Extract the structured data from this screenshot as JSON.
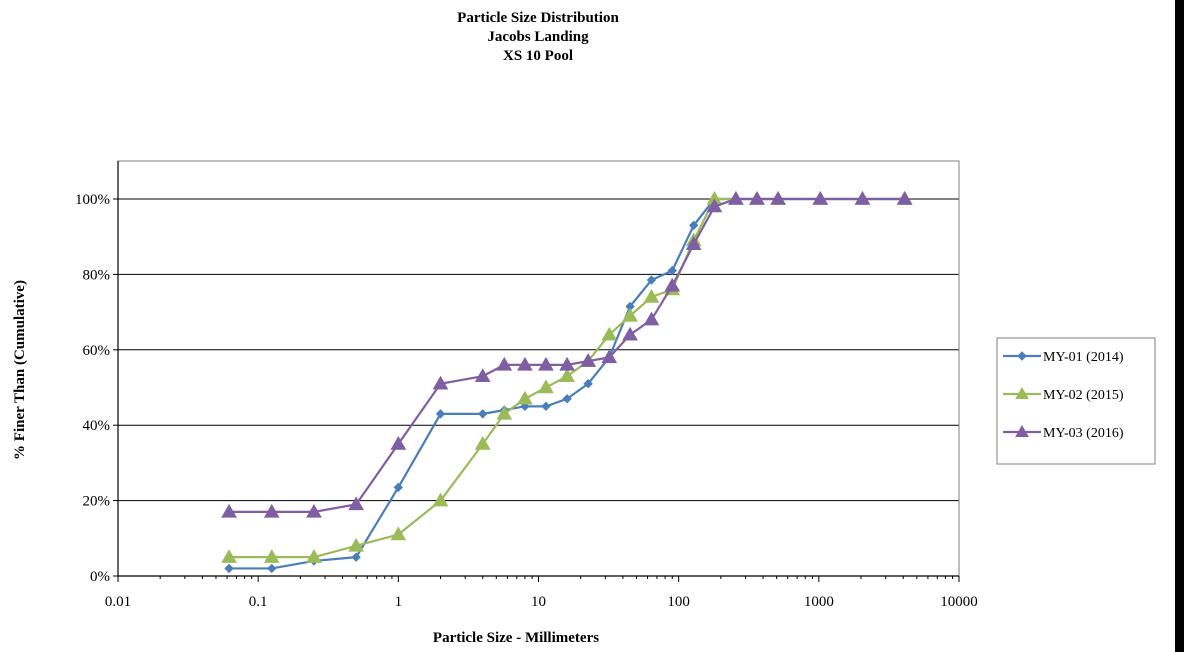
{
  "chart_data": {
    "type": "line",
    "title": [
      "Particle Size Distribution",
      "Jacobs Landing",
      "XS 10 Pool"
    ],
    "xlabel": "Particle Size - Millimeters",
    "ylabel": "% Finer Than (Cumulative)",
    "x_scale": "log",
    "xlim": [
      0.01,
      10000
    ],
    "ylim": [
      0,
      100
    ],
    "x_ticks": [
      0.01,
      0.1,
      1,
      10,
      100,
      1000,
      10000
    ],
    "x_tick_labels": [
      "0.01",
      "0.1",
      "1",
      "10",
      "100",
      "1000",
      "10000"
    ],
    "y_ticks": [
      0,
      20,
      40,
      60,
      80,
      100
    ],
    "y_tick_labels": [
      "0%",
      "20%",
      "40%",
      "60%",
      "80%",
      "100%"
    ],
    "grid": "horizontal",
    "legend_position": "right",
    "series": [
      {
        "name": "MY-01 (2014)",
        "color": "#4a7ebb",
        "marker": "diamond",
        "points": [
          [
            0.062,
            2
          ],
          [
            0.125,
            2
          ],
          [
            0.25,
            4
          ],
          [
            0.5,
            5
          ],
          [
            1,
            23.5
          ],
          [
            2,
            43
          ],
          [
            4,
            43
          ],
          [
            5.7,
            44
          ],
          [
            8,
            45
          ],
          [
            11.3,
            45
          ],
          [
            16,
            47
          ],
          [
            22.6,
            51
          ],
          [
            32,
            58
          ],
          [
            45,
            71.5
          ],
          [
            64,
            78.5
          ],
          [
            90,
            81
          ],
          [
            128,
            93
          ],
          [
            180,
            100
          ],
          [
            256,
            100
          ],
          [
            362,
            100
          ],
          [
            512,
            100
          ],
          [
            1024,
            100
          ],
          [
            2048,
            100
          ],
          [
            4096,
            100
          ]
        ]
      },
      {
        "name": "MY-02 (2015)",
        "color": "#9bbb59",
        "marker": "triangle",
        "points": [
          [
            0.062,
            5
          ],
          [
            0.125,
            5
          ],
          [
            0.25,
            5
          ],
          [
            0.5,
            8
          ],
          [
            1,
            11
          ],
          [
            2,
            20
          ],
          [
            4,
            35
          ],
          [
            5.7,
            43
          ],
          [
            8,
            47
          ],
          [
            11.3,
            50
          ],
          [
            16,
            53
          ],
          [
            22.6,
            57
          ],
          [
            32,
            64
          ],
          [
            45,
            69
          ],
          [
            64,
            74
          ],
          [
            90,
            76
          ],
          [
            128,
            89
          ],
          [
            180,
            100
          ],
          [
            256,
            100
          ],
          [
            362,
            100
          ],
          [
            512,
            100
          ],
          [
            1024,
            100
          ],
          [
            2048,
            100
          ],
          [
            4096,
            100
          ]
        ]
      },
      {
        "name": "MY-03 (2016)",
        "color": "#7f5fa3",
        "marker": "triangle",
        "points": [
          [
            0.062,
            17
          ],
          [
            0.125,
            17
          ],
          [
            0.25,
            17
          ],
          [
            0.5,
            19
          ],
          [
            1,
            35
          ],
          [
            2,
            51
          ],
          [
            4,
            53
          ],
          [
            5.7,
            56
          ],
          [
            8,
            56
          ],
          [
            11.3,
            56
          ],
          [
            16,
            56
          ],
          [
            22.6,
            57
          ],
          [
            32,
            58
          ],
          [
            45,
            64
          ],
          [
            64,
            68
          ],
          [
            90,
            77
          ],
          [
            128,
            88
          ],
          [
            180,
            98
          ],
          [
            256,
            100
          ],
          [
            362,
            100
          ],
          [
            512,
            100
          ],
          [
            1024,
            100
          ],
          [
            2048,
            100
          ],
          [
            4096,
            100
          ]
        ]
      }
    ]
  }
}
